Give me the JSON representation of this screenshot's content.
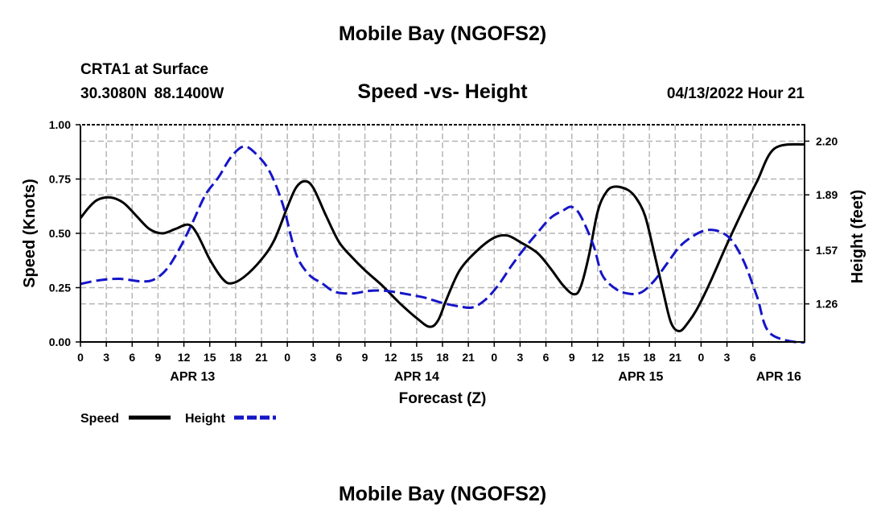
{
  "header": {
    "title": "Mobile Bay (NGOFS2)",
    "station": "CRTA1 at Surface",
    "coords": "30.3080N  88.1400W",
    "subtitle": "Speed -vs- Height",
    "datetime": "04/13/2022 Hour 21"
  },
  "footer": {
    "title": "Mobile Bay (NGOFS2)"
  },
  "legend": {
    "speed_label": "Speed",
    "height_label": "Height"
  },
  "colors": {
    "speed": "#000000",
    "height": "#1515c8",
    "grid": "#b4b4b4"
  },
  "chart_data": {
    "type": "line",
    "title": "Speed -vs- Height",
    "xlabel": "Forecast (Z)",
    "ylabel": "Speed (Knots)",
    "y2label": "Height (feet)",
    "x_range_hours": [
      0,
      84
    ],
    "xticks": [
      {
        "h": 0,
        "label": "0"
      },
      {
        "h": 3,
        "label": "3"
      },
      {
        "h": 6,
        "label": "6"
      },
      {
        "h": 9,
        "label": "9"
      },
      {
        "h": 12,
        "label": "12"
      },
      {
        "h": 15,
        "label": "15"
      },
      {
        "h": 18,
        "label": "18"
      },
      {
        "h": 21,
        "label": "21"
      },
      {
        "h": 24,
        "label": "0"
      },
      {
        "h": 27,
        "label": "3"
      },
      {
        "h": 30,
        "label": "6"
      },
      {
        "h": 33,
        "label": "9"
      },
      {
        "h": 36,
        "label": "12"
      },
      {
        "h": 39,
        "label": "15"
      },
      {
        "h": 42,
        "label": "18"
      },
      {
        "h": 45,
        "label": "21"
      },
      {
        "h": 48,
        "label": "0"
      },
      {
        "h": 51,
        "label": "3"
      },
      {
        "h": 54,
        "label": "6"
      },
      {
        "h": 57,
        "label": "9"
      },
      {
        "h": 60,
        "label": "12"
      },
      {
        "h": 63,
        "label": "15"
      },
      {
        "h": 66,
        "label": "18"
      },
      {
        "h": 69,
        "label": "21"
      },
      {
        "h": 72,
        "label": "0"
      },
      {
        "h": 75,
        "label": "3"
      },
      {
        "h": 78,
        "label": "6"
      }
    ],
    "date_labels": [
      {
        "h": 13,
        "label": "APR 13"
      },
      {
        "h": 39,
        "label": "APR 14"
      },
      {
        "h": 65,
        "label": "APR 15"
      },
      {
        "h": 81,
        "label": "APR 16"
      }
    ],
    "ylim": [
      0,
      1
    ],
    "yticks": [
      {
        "v": 0,
        "label": "0.00"
      },
      {
        "v": 0.25,
        "label": "0.25"
      },
      {
        "v": 0.5,
        "label": "0.50"
      },
      {
        "v": 0.75,
        "label": "0.75"
      },
      {
        "v": 1,
        "label": "1.00"
      }
    ],
    "y2lim": [
      1.04,
      2.295
    ],
    "y2ticks": [
      {
        "v": 1.26,
        "label": "1.26"
      },
      {
        "v": 1.57,
        "label": "1.57"
      },
      {
        "v": 1.89,
        "label": "1.89"
      },
      {
        "v": 2.2,
        "label": "2.20"
      }
    ],
    "grid": true,
    "series": [
      {
        "name": "Speed",
        "axis": "left",
        "points": [
          [
            0,
            0.57
          ],
          [
            1,
            0.62
          ],
          [
            2,
            0.655
          ],
          [
            3.5,
            0.665
          ],
          [
            5,
            0.64
          ],
          [
            6.5,
            0.58
          ],
          [
            8,
            0.52
          ],
          [
            9.5,
            0.5
          ],
          [
            11,
            0.52
          ],
          [
            12.5,
            0.54
          ],
          [
            13.5,
            0.5
          ],
          [
            15,
            0.38
          ],
          [
            16.5,
            0.29
          ],
          [
            17.5,
            0.27
          ],
          [
            19,
            0.3
          ],
          [
            21,
            0.38
          ],
          [
            22.5,
            0.47
          ],
          [
            24,
            0.62
          ],
          [
            25,
            0.71
          ],
          [
            26,
            0.74
          ],
          [
            27,
            0.71
          ],
          [
            28.5,
            0.58
          ],
          [
            30,
            0.46
          ],
          [
            31.5,
            0.39
          ],
          [
            33,
            0.33
          ],
          [
            35,
            0.26
          ],
          [
            37,
            0.18
          ],
          [
            39,
            0.11
          ],
          [
            40.5,
            0.07
          ],
          [
            41.5,
            0.1
          ],
          [
            42.5,
            0.2
          ],
          [
            44,
            0.33
          ],
          [
            46,
            0.42
          ],
          [
            48,
            0.48
          ],
          [
            49.5,
            0.49
          ],
          [
            51,
            0.46
          ],
          [
            53,
            0.41
          ],
          [
            54.5,
            0.34
          ],
          [
            56,
            0.26
          ],
          [
            57.2,
            0.22
          ],
          [
            58,
            0.25
          ],
          [
            59,
            0.4
          ],
          [
            60,
            0.6
          ],
          [
            61,
            0.69
          ],
          [
            62,
            0.715
          ],
          [
            63.5,
            0.7
          ],
          [
            64.5,
            0.66
          ],
          [
            65.5,
            0.58
          ],
          [
            66.5,
            0.42
          ],
          [
            67.5,
            0.25
          ],
          [
            68.5,
            0.09
          ],
          [
            69.5,
            0.05
          ],
          [
            70.5,
            0.09
          ],
          [
            71.5,
            0.15
          ],
          [
            73,
            0.27
          ],
          [
            75,
            0.45
          ],
          [
            77,
            0.62
          ],
          [
            78.5,
            0.74
          ],
          [
            80.5,
            0.89
          ],
          [
            84,
            0.91
          ]
        ]
      },
      {
        "name": "Height",
        "axis": "right",
        "points": [
          [
            0,
            1.375
          ],
          [
            2,
            1.395
          ],
          [
            4.5,
            1.405
          ],
          [
            7,
            1.39
          ],
          [
            8.5,
            1.4
          ],
          [
            10,
            1.46
          ],
          [
            11.5,
            1.58
          ],
          [
            13,
            1.73
          ],
          [
            14.5,
            1.89
          ],
          [
            16,
            1.99
          ],
          [
            17.5,
            2.11
          ],
          [
            19,
            2.17
          ],
          [
            20.5,
            2.12
          ],
          [
            22,
            2.02
          ],
          [
            23.5,
            1.83
          ],
          [
            25,
            1.55
          ],
          [
            26.5,
            1.43
          ],
          [
            28,
            1.38
          ],
          [
            29.5,
            1.33
          ],
          [
            31.5,
            1.32
          ],
          [
            33.5,
            1.335
          ],
          [
            35.5,
            1.335
          ],
          [
            38,
            1.315
          ],
          [
            40,
            1.295
          ],
          [
            42,
            1.265
          ],
          [
            44,
            1.245
          ],
          [
            45.5,
            1.24
          ],
          [
            47,
            1.285
          ],
          [
            48.5,
            1.37
          ],
          [
            50,
            1.48
          ],
          [
            51.5,
            1.58
          ],
          [
            53,
            1.67
          ],
          [
            54.5,
            1.755
          ],
          [
            56,
            1.8
          ],
          [
            57,
            1.82
          ],
          [
            58,
            1.77
          ],
          [
            59.5,
            1.6
          ],
          [
            60.5,
            1.43
          ],
          [
            62,
            1.35
          ],
          [
            63.5,
            1.32
          ],
          [
            65,
            1.325
          ],
          [
            66.5,
            1.39
          ],
          [
            68,
            1.49
          ],
          [
            69.5,
            1.59
          ],
          [
            71,
            1.65
          ],
          [
            72.5,
            1.685
          ],
          [
            74,
            1.68
          ],
          [
            75.5,
            1.63
          ],
          [
            77,
            1.5
          ],
          [
            78.5,
            1.3
          ],
          [
            80,
            1.09
          ],
          [
            84,
            1.03
          ]
        ]
      }
    ]
  }
}
